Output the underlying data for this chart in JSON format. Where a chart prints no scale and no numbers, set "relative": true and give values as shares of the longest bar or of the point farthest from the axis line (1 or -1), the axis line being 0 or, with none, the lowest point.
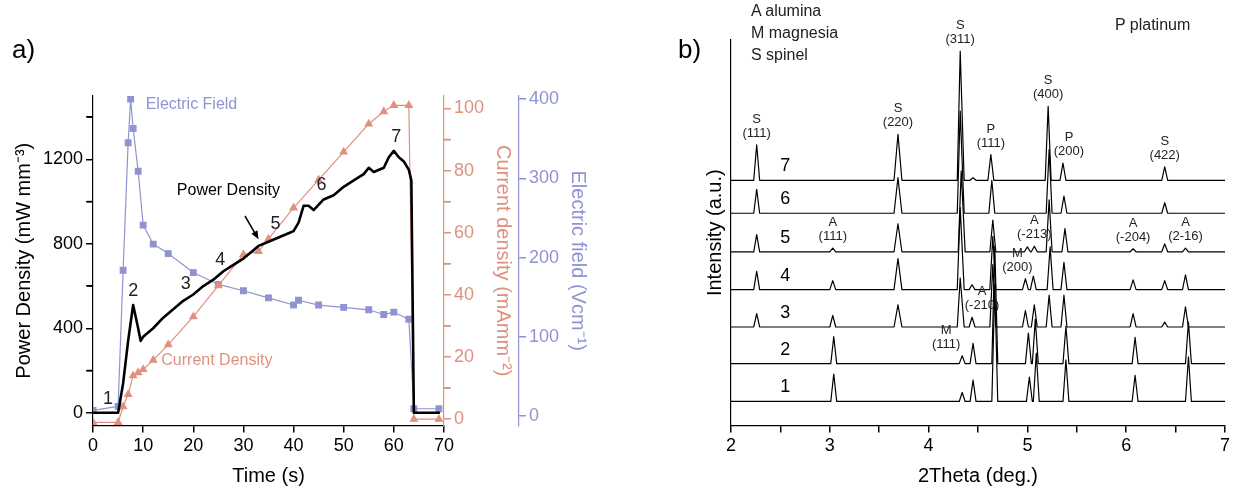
{
  "chart_data": [
    {
      "type": "line",
      "title": "a)",
      "xlabel": "Time (s)",
      "ylabel": "Power Density (mW mm⁻³)",
      "y2label": "Current density (mAmm⁻²)",
      "y3label": "Electric field (Vcm⁻¹)",
      "xlim": [
        0,
        70
      ],
      "xticks": [
        0,
        10,
        20,
        30,
        40,
        50,
        60,
        70
      ],
      "ylim": [
        -60,
        1500
      ],
      "yticks": [
        0,
        {
          "value": 200,
          "label": null
        },
        400,
        {
          "value": 600,
          "label": null
        },
        800,
        {
          "value": 1000,
          "label": null
        },
        1200,
        {
          "value": 1400,
          "label": null
        }
      ],
      "y2lim": [
        -2,
        104
      ],
      "y2ticks": [
        0,
        {
          "value": 10,
          "label": null
        },
        20,
        {
          "value": 30,
          "label": null
        },
        40,
        {
          "value": 50,
          "label": null
        },
        60,
        {
          "value": 70,
          "label": null
        },
        80,
        {
          "value": 90,
          "label": null
        },
        100
      ],
      "y3lim": [
        -12,
        404
      ],
      "y3ticks": [
        0,
        100,
        200,
        300,
        400
      ],
      "series": [
        {
          "name": "Power Density",
          "color": "#000000",
          "marker": "none",
          "x": [
            0,
            5,
            6,
            7,
            8,
            9,
            9.5,
            10,
            12,
            14,
            16,
            18,
            20,
            22,
            24,
            26,
            28,
            30,
            32,
            33,
            35,
            37,
            39,
            40,
            41,
            42,
            43,
            44,
            46,
            48,
            50,
            52,
            54,
            55,
            56,
            58,
            59,
            60,
            61,
            62,
            63,
            63.5,
            64,
            69
          ],
          "values": [
            0,
            0,
            140,
            340,
            510,
            400,
            340,
            360,
            400,
            450,
            490,
            530,
            560,
            600,
            630,
            670,
            700,
            730,
            770,
            790,
            810,
            830,
            850,
            860,
            900,
            980,
            980,
            960,
            1010,
            1030,
            1070,
            1100,
            1130,
            1160,
            1140,
            1160,
            1210,
            1240,
            1210,
            1190,
            1150,
            1100,
            0,
            0
          ]
        },
        {
          "name": "Current Density",
          "color": "#e0907f",
          "marker": "triangle",
          "axis": "y2",
          "x": [
            0,
            5,
            6,
            7,
            8,
            9,
            10,
            12,
            15,
            20,
            25,
            30,
            33,
            35,
            40,
            45,
            50,
            55,
            58,
            60,
            63,
            64,
            69
          ],
          "values": [
            -1,
            -1,
            4,
            8,
            14,
            15,
            16,
            19,
            24,
            33,
            43,
            53,
            54,
            58,
            68,
            77,
            86,
            95,
            99,
            101,
            101,
            0,
            0
          ]
        },
        {
          "name": "Electric Field",
          "color": "#8f93d0",
          "marker": "square",
          "axis": "y3",
          "x": [
            0,
            5,
            6,
            7,
            7.5,
            8,
            9,
            10,
            12,
            15,
            20,
            25,
            30,
            35,
            40,
            41,
            45,
            50,
            55,
            58,
            60,
            63,
            64,
            69
          ],
          "values": [
            7,
            12,
            184,
            345,
            400,
            363,
            309,
            241,
            217,
            205,
            181,
            166,
            158,
            149,
            140,
            146,
            140,
            137,
            134,
            128,
            131,
            122,
            9,
            9
          ]
        }
      ],
      "annotations": [
        {
          "text": "1",
          "x": 3,
          "y": 0
        },
        {
          "text": "2",
          "x": 8,
          "y": 510
        },
        {
          "text": "3",
          "x": 18.5,
          "y": 545
        },
        {
          "text": "4",
          "x": 25.4,
          "y": 655
        },
        {
          "text": "5",
          "x": 36.4,
          "y": 825
        },
        {
          "text": "6",
          "x": 45.6,
          "y": 1010
        },
        {
          "text": "7",
          "x": 60.5,
          "y": 1240
        }
      ]
    },
    {
      "type": "line",
      "title": "b)",
      "xlabel": "2Theta (deg.)",
      "ylabel": "Intensity (a.u.)",
      "relative": true,
      "marker": "none",
      "xlim": [
        2,
        7
      ],
      "xticks": [
        2,
        {
          "value": 2.5,
          "label": null
        },
        3,
        {
          "value": 3.5,
          "label": null
        },
        4,
        {
          "value": 4.5,
          "label": null
        },
        5,
        {
          "value": 5.5,
          "label": null
        },
        6,
        {
          "value": 6.5,
          "label": null
        },
        7
      ],
      "series": [
        {
          "name": "1",
          "color": "#000000",
          "x": [
            2,
            3.01,
            3.04,
            3.07,
            4.31,
            4.34,
            4.37,
            4.42,
            4.45,
            4.48,
            4.64,
            4.67,
            4.7,
            4.99,
            5.02,
            5.05,
            5.06,
            5.09,
            5.12,
            5.36,
            5.39,
            5.42,
            6.06,
            6.09,
            6.12,
            6.6,
            6.63,
            6.66,
            7
          ],
          "values": [
            0.064,
            0.064,
            0.137,
            0.064,
            0.064,
            0.088,
            0.064,
            0.064,
            0.121,
            0.064,
            0.064,
            0.376,
            0.064,
            0.064,
            0.129,
            0.064,
            0.064,
            0.193,
            0.064,
            0.064,
            0.175,
            0.064,
            0.064,
            0.134,
            0.064,
            0.064,
            0.183,
            0.064,
            0.064
          ]
        },
        {
          "name": "2",
          "color": "#000000",
          "x": [
            2,
            3.01,
            3.04,
            3.07,
            4.31,
            4.34,
            4.37,
            4.42,
            4.45,
            4.48,
            4.64,
            4.67,
            4.7,
            4.98,
            5.01,
            5.04,
            5.05,
            5.08,
            5.11,
            5.36,
            5.39,
            5.42,
            6.06,
            6.09,
            6.12,
            6.6,
            6.63,
            6.66,
            7
          ],
          "values": [
            0.165,
            0.165,
            0.237,
            0.165,
            0.165,
            0.186,
            0.165,
            0.165,
            0.219,
            0.165,
            0.165,
            0.479,
            0.165,
            0.165,
            0.247,
            0.165,
            0.165,
            0.284,
            0.165,
            0.165,
            0.265,
            0.165,
            0.165,
            0.235,
            0.165,
            0.165,
            0.276,
            0.165,
            0.165
          ]
        },
        {
          "name": "3",
          "color": "#000000",
          "x": [
            2,
            2.23,
            2.26,
            2.29,
            3.0,
            3.03,
            3.06,
            3.65,
            3.69,
            3.73,
            4.29,
            4.32,
            4.36,
            4.41,
            4.44,
            4.47,
            4.62,
            4.65,
            4.68,
            4.95,
            4.98,
            5.01,
            5.04,
            5.07,
            5.1,
            5.19,
            5.22,
            5.25,
            5.34,
            5.37,
            5.4,
            6.04,
            6.07,
            6.1,
            6.36,
            6.39,
            6.42,
            6.57,
            6.6,
            6.63,
            7
          ],
          "values": [
            0.263,
            0.263,
            0.299,
            0.263,
            0.263,
            0.294,
            0.263,
            0.263,
            0.322,
            0.263,
            0.263,
            0.394,
            0.263,
            0.263,
            0.289,
            0.263,
            0.263,
            0.43,
            0.263,
            0.263,
            0.307,
            0.263,
            0.263,
            0.322,
            0.263,
            0.263,
            0.348,
            0.263,
            0.263,
            0.348,
            0.263,
            0.263,
            0.299,
            0.263,
            0.263,
            0.276,
            0.263,
            0.263,
            0.317,
            0.263,
            0.263
          ]
        },
        {
          "name": "4",
          "color": "#000000",
          "x": [
            2,
            2.23,
            2.26,
            2.29,
            3.0,
            3.03,
            3.06,
            3.65,
            3.69,
            3.73,
            4.29,
            4.32,
            4.36,
            4.41,
            4.44,
            4.47,
            4.62,
            4.65,
            4.68,
            4.95,
            4.98,
            5.01,
            5.03,
            5.06,
            5.09,
            5.2,
            5.23,
            5.26,
            5.34,
            5.37,
            5.4,
            6.04,
            6.07,
            6.1,
            6.36,
            6.39,
            6.42,
            6.57,
            6.6,
            6.63,
            7
          ],
          "values": [
            0.363,
            0.363,
            0.412,
            0.363,
            0.363,
            0.387,
            0.363,
            0.363,
            0.446,
            0.363,
            0.363,
            0.582,
            0.363,
            0.363,
            0.376,
            0.363,
            0.363,
            0.505,
            0.363,
            0.363,
            0.392,
            0.363,
            0.363,
            0.399,
            0.363,
            0.363,
            0.477,
            0.363,
            0.363,
            0.436,
            0.363,
            0.363,
            0.389,
            0.363,
            0.363,
            0.387,
            0.363,
            0.363,
            0.402,
            0.363,
            0.363
          ]
        },
        {
          "name": "5",
          "color": "#000000",
          "x": [
            2,
            2.23,
            2.26,
            2.29,
            3.0,
            3.03,
            3.06,
            3.65,
            3.69,
            3.73,
            4.3,
            4.33,
            4.37,
            4.62,
            4.65,
            4.68,
            4.97,
            5.0,
            5.03,
            5.04,
            5.07,
            5.1,
            5.19,
            5.22,
            5.25,
            5.35,
            5.38,
            5.41,
            6.04,
            6.07,
            6.1,
            6.36,
            6.39,
            6.42,
            6.57,
            6.6,
            6.63,
            7
          ],
          "values": [
            0.464,
            0.464,
            0.51,
            0.464,
            0.464,
            0.474,
            0.464,
            0.464,
            0.539,
            0.464,
            0.464,
            0.68,
            0.464,
            0.464,
            0.549,
            0.464,
            0.464,
            0.477,
            0.464,
            0.464,
            0.479,
            0.464,
            0.464,
            0.603,
            0.464,
            0.464,
            0.526,
            0.464,
            0.464,
            0.472,
            0.464,
            0.464,
            0.485,
            0.464,
            0.464,
            0.474,
            0.464,
            0.464
          ]
        },
        {
          "name": "6",
          "color": "#000000",
          "x": [
            2,
            2.23,
            2.26,
            2.29,
            3.65,
            3.69,
            3.73,
            4.29,
            4.32,
            4.36,
            4.61,
            4.64,
            4.67,
            5.19,
            5.22,
            5.25,
            5.34,
            5.37,
            5.4,
            6.36,
            6.39,
            6.42,
            7
          ],
          "values": [
            0.567,
            0.567,
            0.631,
            0.567,
            0.567,
            0.662,
            0.567,
            0.567,
            0.84,
            0.567,
            0.567,
            0.655,
            0.567,
            0.567,
            0.737,
            0.567,
            0.567,
            0.613,
            0.567,
            0.567,
            0.595,
            0.567,
            0.567
          ]
        },
        {
          "name": "7",
          "color": "#000000",
          "x": [
            2,
            2.23,
            2.26,
            2.29,
            3.65,
            3.69,
            3.73,
            4.29,
            4.32,
            4.36,
            4.42,
            4.45,
            4.48,
            4.6,
            4.63,
            4.66,
            5.18,
            5.21,
            5.24,
            5.33,
            5.36,
            5.39,
            6.36,
            6.39,
            6.42,
            7
          ],
          "values": [
            0.655,
            0.655,
            0.75,
            0.655,
            0.655,
            0.778,
            0.655,
            0.655,
            1.0,
            0.655,
            0.655,
            0.662,
            0.655,
            0.655,
            0.724,
            0.655,
            0.655,
            0.853,
            0.655,
            0.655,
            0.701,
            0.655,
            0.655,
            0.691,
            0.655,
            0.655
          ]
        }
      ],
      "annotations": [
        "A alumina",
        "M magnesia",
        "S spinel",
        "P platinum",
        {
          "text": "S\n(111)",
          "x": 2.26,
          "y": 0.75
        },
        {
          "text": "S\n(220)",
          "x": 3.69,
          "y": 0.778
        },
        {
          "text": "S\n(311)",
          "x": 4.32,
          "y": 1.0
        },
        {
          "text": "P\n(111)",
          "x": 4.63,
          "y": 0.724
        },
        {
          "text": "S\n(400)",
          "x": 5.21,
          "y": 0.853
        },
        {
          "text": "P\n(200)",
          "x": 5.36,
          "y": 0.701
        },
        {
          "text": "S\n(422)",
          "x": 6.39,
          "y": 0.691
        },
        {
          "text": "A\n(111)",
          "x": 3.03,
          "y": 0.474
        },
        {
          "text": "A\n(-213)",
          "x": 5.07,
          "y": 0.479
        },
        {
          "text": "A\n(-204)",
          "x": 6.07,
          "y": 0.472
        },
        {
          "text": "A\n(2-16)",
          "x": 6.6,
          "y": 0.474
        },
        {
          "text": "M\n(200)",
          "x": 4.98,
          "y": 0.392
        },
        {
          "text": "A\n(-210)",
          "x": 4.44,
          "y": 0.289
        },
        {
          "text": "M\n(111)",
          "x": 4.34,
          "y": 0.186
        }
      ]
    }
  ]
}
